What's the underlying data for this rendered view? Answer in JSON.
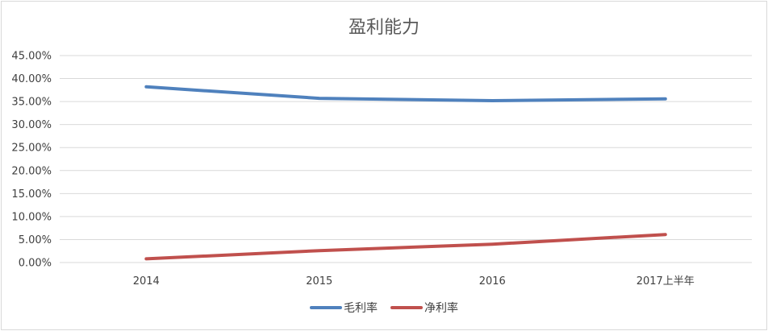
{
  "chart_data": {
    "type": "line",
    "title": "盈利能力",
    "xlabel": "",
    "ylabel": "",
    "categories": [
      "2014",
      "2015",
      "2016",
      "2017上半年"
    ],
    "ylim": [
      0,
      0.45
    ],
    "y_ticks": [
      "0.00%",
      "5.00%",
      "10.00%",
      "15.00%",
      "20.00%",
      "25.00%",
      "30.00%",
      "35.00%",
      "40.00%",
      "45.00%"
    ],
    "grid": true,
    "legend_position": "bottom",
    "series": [
      {
        "name": "毛利率",
        "color": "#4F81BD",
        "values": [
          0.382,
          0.357,
          0.352,
          0.356
        ]
      },
      {
        "name": "净利率",
        "color": "#C0504D",
        "values": [
          0.008,
          0.026,
          0.04,
          0.061
        ]
      }
    ]
  }
}
